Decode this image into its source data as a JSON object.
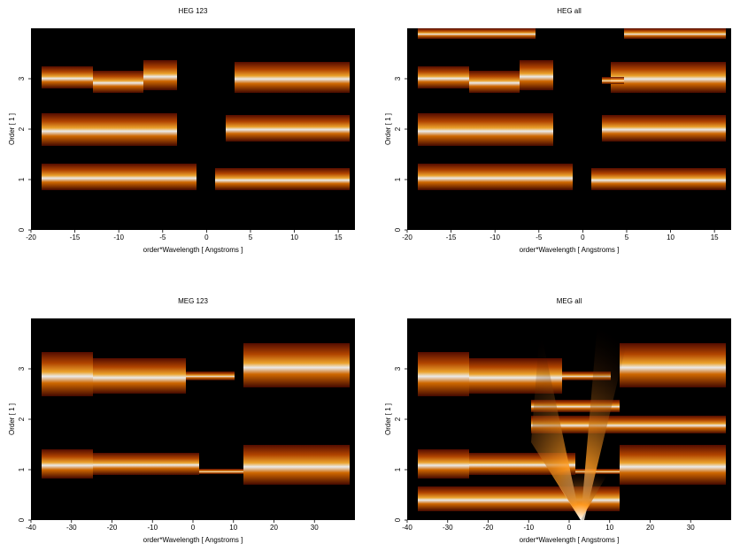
{
  "chart_data": [
    {
      "type": "image",
      "title": "HEG 123",
      "x_label": "order*Wavelength [ Angstroms ]",
      "y_label": "Order [ 1 ]",
      "xlim": [
        -20,
        16.9
      ],
      "ylim": [
        0,
        4
      ],
      "xticks": [
        -20,
        -15,
        -10,
        -5,
        0,
        5,
        10,
        15
      ],
      "yticks": [
        0,
        1,
        2,
        3
      ]
    },
    {
      "type": "image",
      "title": "HEG all",
      "x_label": "order*Wavelength [ Angstroms ]",
      "y_label": "Order [ 1 ]",
      "xlim": [
        -20,
        16.9
      ],
      "ylim": [
        0,
        4
      ],
      "xticks": [
        -20,
        -15,
        -10,
        -5,
        0,
        5,
        10,
        15
      ],
      "yticks": [
        0,
        1,
        2,
        3
      ]
    },
    {
      "type": "image",
      "title": "MEG 123",
      "x_label": "order*Wavelength [ Angstroms ]",
      "y_label": "Order [ 1 ]",
      "xlim": [
        -40,
        40
      ],
      "ylim": [
        0,
        4
      ],
      "xticks": [
        -40,
        -30,
        -20,
        -10,
        0,
        10,
        20,
        30
      ],
      "yticks": [
        0,
        1,
        2,
        3
      ]
    },
    {
      "type": "image",
      "title": "MEG all",
      "x_label": "order*Wavelength [ Angstroms ]",
      "y_label": "Order [ 1 ]",
      "xlim": [
        -40,
        40
      ],
      "ylim": [
        0,
        4
      ],
      "xticks": [
        -40,
        -30,
        -20,
        -10,
        0,
        10,
        20,
        30
      ],
      "yticks": [
        0,
        1,
        2,
        3
      ]
    }
  ]
}
